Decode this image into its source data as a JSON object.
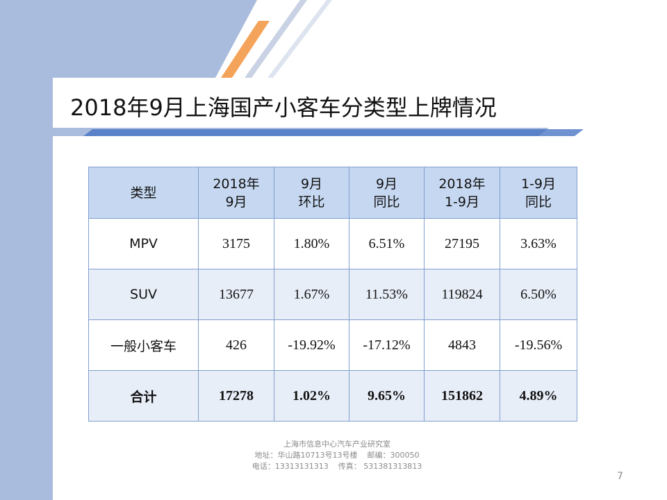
{
  "slide": {
    "title": "2018年9月上海国产小客车分类型上牌情况",
    "page_number": "7",
    "colors": {
      "side_band": "#a9bcdd",
      "header_fill": "#c6d8f1",
      "row_alt_fill": "#e8eef8",
      "border": "#7f9fce",
      "accent_orange": "#f4a35a",
      "accent_blue": "#3f6fc0"
    }
  },
  "table": {
    "headers": [
      {
        "line1": "类型",
        "line2": ""
      },
      {
        "line1": "2018年",
        "line2": "9月"
      },
      {
        "line1": "9月",
        "line2": "环比"
      },
      {
        "line1": "9月",
        "line2": "同比"
      },
      {
        "line1": "2018年",
        "line2": "1-9月"
      },
      {
        "line1": "1-9月",
        "line2": "同比"
      }
    ],
    "rows": [
      {
        "type": "MPV",
        "sep": "3175",
        "mom": "1.80%",
        "yoy": "6.51%",
        "ytd": "27195",
        "ytd_yoy": "3.63%"
      },
      {
        "type": "SUV",
        "sep": "13677",
        "mom": "1.67%",
        "yoy": "11.53%",
        "ytd": "119824",
        "ytd_yoy": "6.50%"
      },
      {
        "type": "一般小客车",
        "sep": "426",
        "mom": "-19.92%",
        "yoy": "-17.12%",
        "ytd": "4843",
        "ytd_yoy": "-19.56%"
      }
    ],
    "total": {
      "type": "合计",
      "sep": "17278",
      "mom": "1.02%",
      "yoy": "9.65%",
      "ytd": "151862",
      "ytd_yoy": "4.89%"
    }
  },
  "footer": {
    "line1": "上海市信息中心汽车产业研究室",
    "line2": "地址：华山路10713号13号楼    邮编：300050",
    "line3": "电话：13313131313    传真： 531381313813"
  }
}
